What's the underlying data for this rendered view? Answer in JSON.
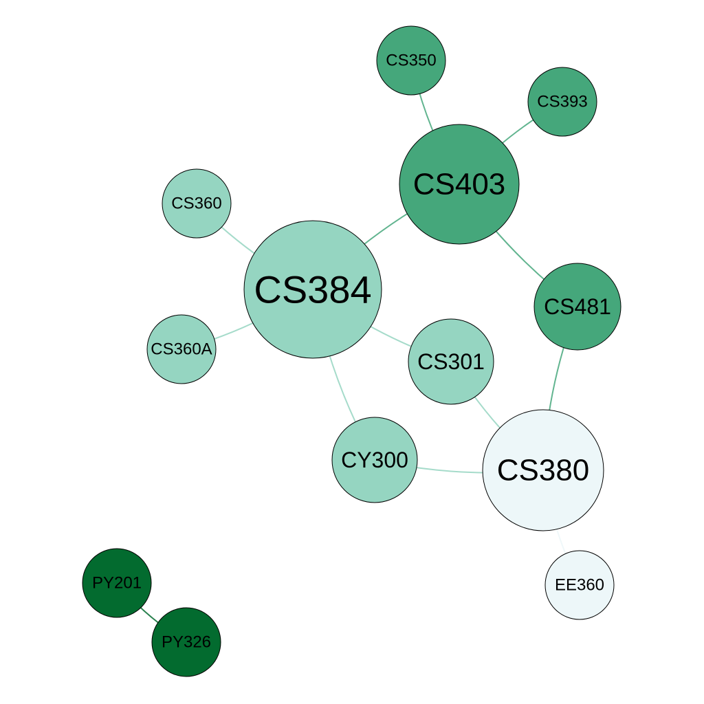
{
  "colors": {
    "light_blue": "#edf7f9",
    "light_teal": "#95d5c1",
    "medium_green": "#45a77b",
    "dark_green": "#036b2f"
  },
  "nodes": [
    {
      "id": "CS350",
      "label": "CS350",
      "color": "medium_green"
    },
    {
      "id": "CS393",
      "label": "CS393",
      "color": "medium_green"
    },
    {
      "id": "CS403",
      "label": "CS403",
      "color": "medium_green"
    },
    {
      "id": "CS360",
      "label": "CS360",
      "color": "light_teal"
    },
    {
      "id": "CS384",
      "label": "CS384",
      "color": "light_teal"
    },
    {
      "id": "CS481",
      "label": "CS481",
      "color": "medium_green"
    },
    {
      "id": "CS360A",
      "label": "CS360A",
      "color": "light_teal"
    },
    {
      "id": "CS301",
      "label": "CS301",
      "color": "light_teal"
    },
    {
      "id": "CY300",
      "label": "CY300",
      "color": "light_teal"
    },
    {
      "id": "CS380",
      "label": "CS380",
      "color": "light_blue"
    },
    {
      "id": "EE360",
      "label": "EE360",
      "color": "light_blue"
    },
    {
      "id": "PY201",
      "label": "PY201",
      "color": "dark_green"
    },
    {
      "id": "PY326",
      "label": "PY326",
      "color": "dark_green"
    }
  ],
  "edges": [
    {
      "source": "CS350",
      "target": "CS403"
    },
    {
      "source": "CS393",
      "target": "CS403"
    },
    {
      "source": "CS403",
      "target": "CS384"
    },
    {
      "source": "CS403",
      "target": "CS481"
    },
    {
      "source": "CS360",
      "target": "CS384"
    },
    {
      "source": "CS360A",
      "target": "CS384"
    },
    {
      "source": "CS384",
      "target": "CS301"
    },
    {
      "source": "CS384",
      "target": "CY300"
    },
    {
      "source": "CS301",
      "target": "CS380"
    },
    {
      "source": "CY300",
      "target": "CS380"
    },
    {
      "source": "CS481",
      "target": "CS380"
    },
    {
      "source": "CS380",
      "target": "EE360"
    },
    {
      "source": "PY201",
      "target": "PY326"
    }
  ]
}
